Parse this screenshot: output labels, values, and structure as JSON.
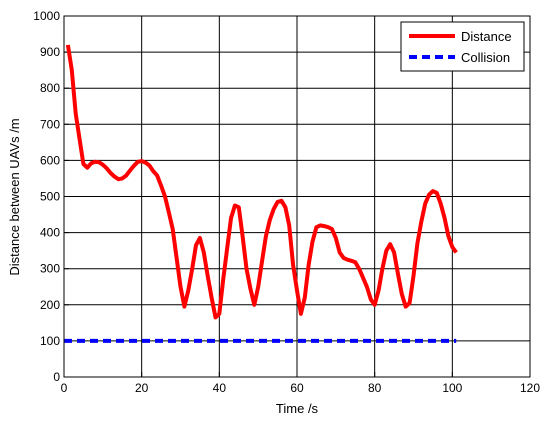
{
  "chart_data": {
    "type": "line",
    "title": "",
    "xlabel": "Time /s",
    "ylabel": "Distance between UAVs /m",
    "xlim": [
      0,
      120
    ],
    "ylim": [
      0,
      1000
    ],
    "xticks": [
      0,
      20,
      40,
      60,
      80,
      100,
      120
    ],
    "yticks": [
      0,
      100,
      200,
      300,
      400,
      500,
      600,
      700,
      800,
      900,
      1000
    ],
    "grid": true,
    "legend_position": "top-right",
    "series": [
      {
        "name": "Distance",
        "color": "#ff0000",
        "style": "solid",
        "x": [
          1,
          2,
          3,
          4,
          5,
          6,
          7,
          8,
          9,
          10,
          11,
          12,
          13,
          14,
          15,
          16,
          17,
          18,
          19,
          20,
          21,
          22,
          23,
          24,
          25,
          26,
          27,
          28,
          29,
          30,
          31,
          32,
          33,
          34,
          35,
          36,
          37,
          38,
          39,
          40,
          41,
          42,
          43,
          44,
          45,
          46,
          47,
          48,
          49,
          50,
          51,
          52,
          53,
          54,
          55,
          56,
          57,
          58,
          59,
          60,
          61,
          62,
          63,
          64,
          65,
          66,
          67,
          68,
          69,
          70,
          71,
          72,
          73,
          74,
          75,
          76,
          77,
          78,
          79,
          80,
          81,
          82,
          83,
          84,
          85,
          86,
          87,
          88,
          89,
          90,
          91,
          92,
          93,
          94,
          95,
          96,
          97,
          98,
          99,
          100,
          101
        ],
        "y": [
          920,
          850,
          730,
          660,
          590,
          580,
          592,
          596,
          595,
          588,
          578,
          565,
          555,
          548,
          550,
          558,
          572,
          585,
          596,
          598,
          594,
          586,
          570,
          558,
          530,
          500,
          455,
          410,
          330,
          250,
          195,
          240,
          300,
          365,
          385,
          345,
          280,
          220,
          165,
          175,
          270,
          355,
          440,
          475,
          470,
          390,
          300,
          245,
          200,
          250,
          320,
          390,
          435,
          465,
          485,
          488,
          470,
          420,
          310,
          240,
          175,
          220,
          310,
          375,
          415,
          420,
          418,
          415,
          410,
          385,
          345,
          330,
          325,
          322,
          318,
          300,
          275,
          250,
          215,
          200,
          240,
          300,
          350,
          368,
          345,
          285,
          230,
          195,
          205,
          280,
          370,
          430,
          480,
          505,
          515,
          510,
          480,
          440,
          390,
          360,
          345
        ]
      },
      {
        "name": "Collision",
        "color": "#0000ff",
        "style": "dashed",
        "x": [
          0,
          101
        ],
        "y": [
          100,
          100
        ]
      }
    ]
  }
}
